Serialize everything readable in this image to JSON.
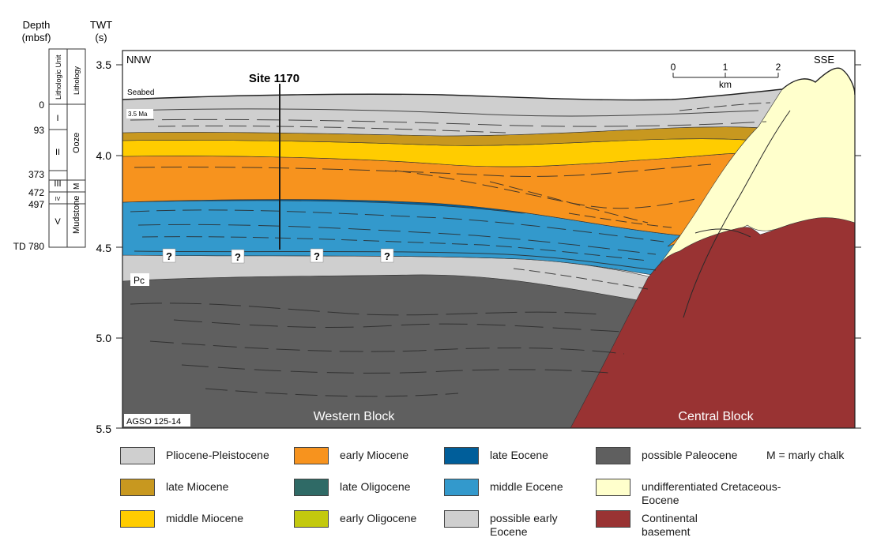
{
  "column": {
    "depth_title": "Depth",
    "depth_unit": "(mbsf)",
    "unit_header": "Lithologic Unit",
    "lith_header": "Lithology",
    "depth_marks": [
      "0",
      "93",
      "373",
      "472",
      "497",
      "TD 780"
    ],
    "units": [
      "I",
      "II",
      "III",
      "IV",
      "V"
    ],
    "lithologies": [
      "Ooze",
      "M",
      "Mudstone"
    ]
  },
  "axis": {
    "title": "TWT",
    "unit": "(s)",
    "ticks": [
      "3.5",
      "4.0",
      "4.5",
      "5.0",
      "5.5"
    ]
  },
  "section": {
    "direction_left": "NNW",
    "direction_right": "SSE",
    "site_label": "Site 1170",
    "seabed_label": "Seabed",
    "age_label": "3.5 Ma",
    "pc_label": "Pc",
    "question_marks": [
      "?",
      "?",
      "?",
      "?"
    ],
    "west_block": "Western Block",
    "central_block": "Central Block",
    "credit": "AGSO 125-14",
    "scale_ticks": [
      "0",
      "1",
      "2"
    ],
    "scale_unit": "km"
  },
  "colors": {
    "pliocene_pleistocene": "#cfcfcf",
    "late_miocene": "#c8981f",
    "middle_miocene": "#ffcc00",
    "early_miocene": "#f7931e",
    "late_oligocene": "#2f6a66",
    "early_oligocene": "#c3c90e",
    "late_eocene": "#005e9a",
    "middle_eocene": "#3399cc",
    "possible_early_eocene": "#cfcfcf",
    "possible_paleocene": "#5f5f5f",
    "undifferentiated": "#ffffcc",
    "basement": "#993333"
  },
  "legend": [
    {
      "label": "Pliocene-Pleistocene",
      "color": "#cfcfcf"
    },
    {
      "label": "late Miocene",
      "color": "#c8981f"
    },
    {
      "label": "middle Miocene",
      "color": "#ffcc00"
    },
    {
      "label": "early Miocene",
      "color": "#f7931e"
    },
    {
      "label": "late Oligocene",
      "color": "#2f6a66"
    },
    {
      "label": "early Oligocene",
      "color": "#c3c90e"
    },
    {
      "label": "late Eocene",
      "color": "#005e9a"
    },
    {
      "label": "middle Eocene",
      "color": "#3399cc"
    },
    {
      "label": "possible early Eocene",
      "color": "#cfcfcf"
    },
    {
      "label": "possible Paleocene",
      "color": "#5f5f5f"
    },
    {
      "label": "undifferentiated Cretaceous-Eocene",
      "color": "#ffffcc"
    },
    {
      "label": "Continental basement",
      "color": "#993333"
    }
  ],
  "note": "M = marly chalk"
}
